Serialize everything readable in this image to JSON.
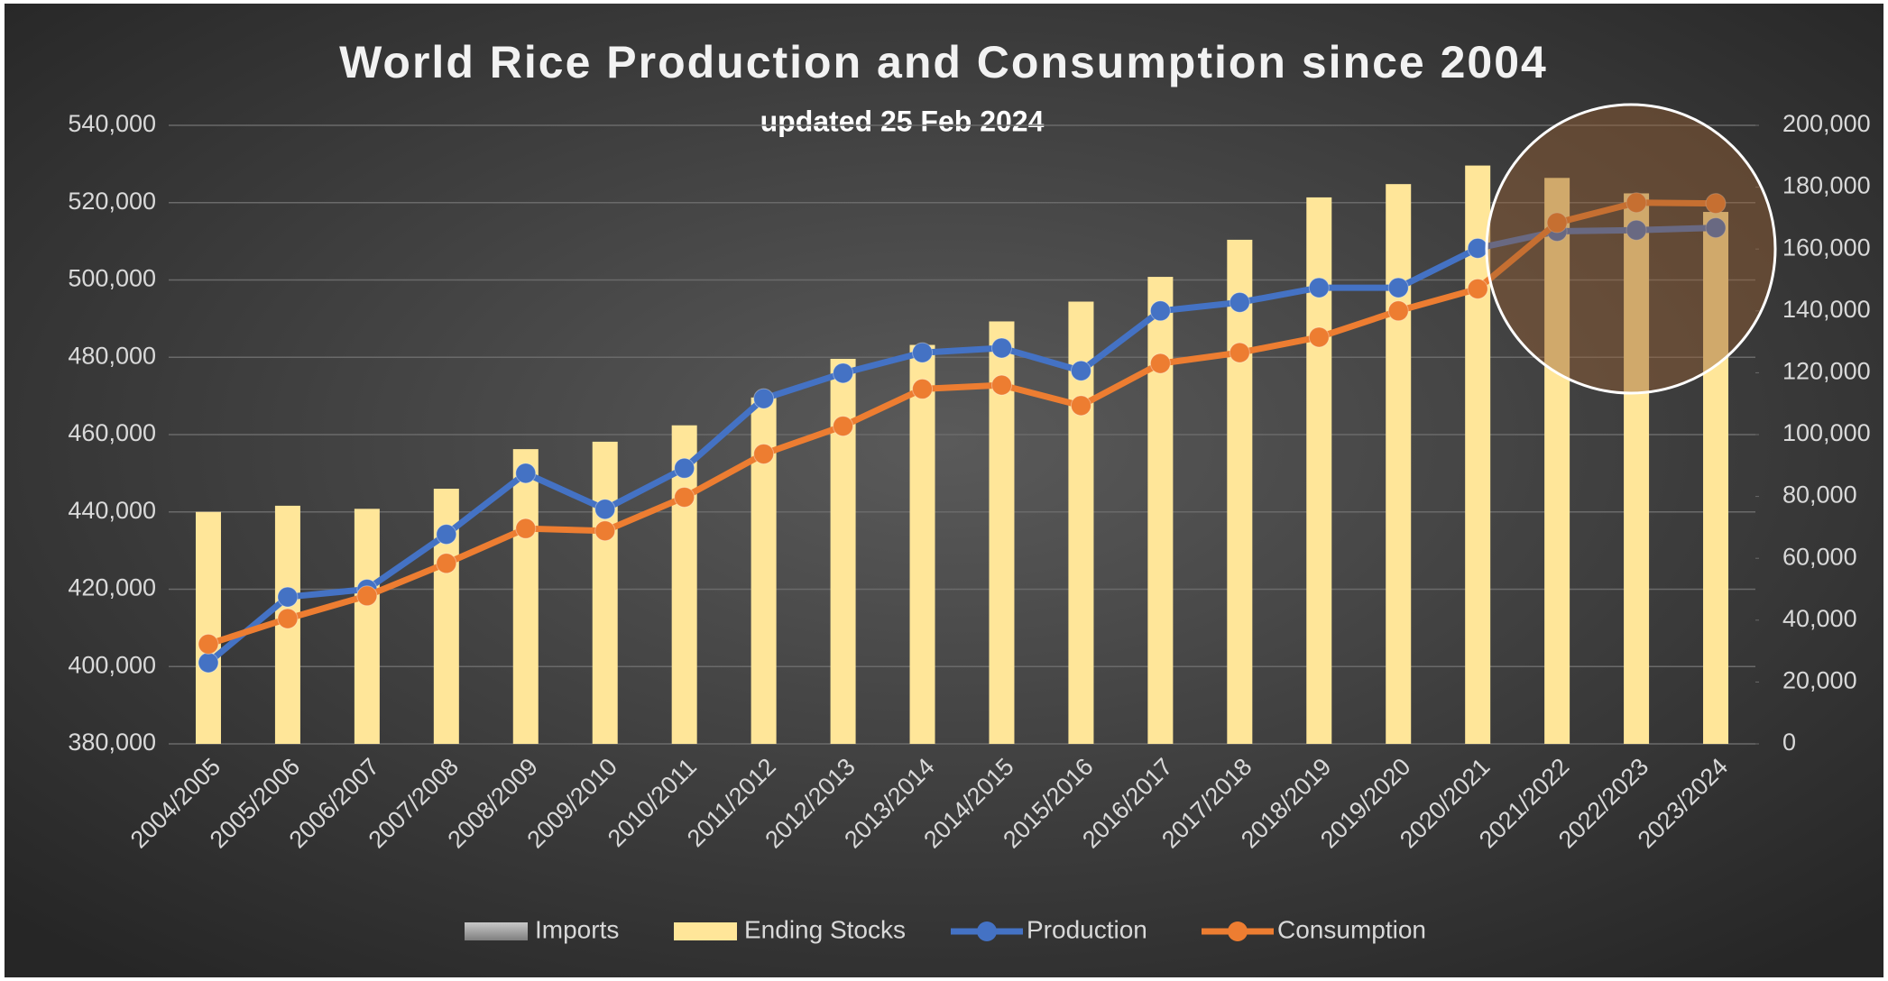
{
  "chart_data": {
    "type": "bar_line_combo",
    "title": "World Rice Production and Consumption since 2004",
    "subtitle": "updated 25 Feb 2024",
    "categories": [
      "2004/2005",
      "2005/2006",
      "2006/2007",
      "2007/2008",
      "2008/2009",
      "2009/2010",
      "2010/2011",
      "2011/2012",
      "2012/2013",
      "2013/2014",
      "2014/2015",
      "2015/2016",
      "2016/2017",
      "2017/2018",
      "2018/2019",
      "2019/2020",
      "2020/2021",
      "2021/2022",
      "2022/2023",
      "2023/2024"
    ],
    "series": [
      {
        "name": "Imports",
        "color": "#a6a6a6"
      },
      {
        "name": "Ending Stocks",
        "color": "#ffe699",
        "axis": "y2",
        "values": [
          75000,
          77000,
          76000,
          82500,
          95300,
          97700,
          103000,
          112000,
          124500,
          129000,
          136600,
          143000,
          151000,
          163000,
          176700,
          181000,
          187000,
          183000,
          178000,
          172000
        ]
      },
      {
        "name": "Production",
        "color": "#4472c4",
        "values": [
          401000,
          418000,
          420000,
          434200,
          450000,
          440700,
          451300,
          469300,
          475900,
          481200,
          482400,
          476500,
          492000,
          494200,
          498000,
          498000,
          508200,
          512600,
          512900,
          513500
        ]
      },
      {
        "name": "Consumption",
        "color": "#ed7d31",
        "values": [
          405800,
          412400,
          418300,
          426700,
          435700,
          435100,
          443800,
          455000,
          462200,
          471800,
          472800,
          467500,
          478400,
          481200,
          485200,
          492000,
          497700,
          514800,
          520000,
          519800
        ]
      }
    ],
    "ylim": [
      380000,
      540000
    ],
    "yticks": [
      {
        "value": 380000,
        "label": "380,000"
      },
      {
        "value": 400000,
        "label": "400,000"
      },
      {
        "value": 420000,
        "label": "420,000"
      },
      {
        "value": 440000,
        "label": "440,000"
      },
      {
        "value": 460000,
        "label": "460,000"
      },
      {
        "value": 480000,
        "label": "480,000"
      },
      {
        "value": 500000,
        "label": "500,000"
      },
      {
        "value": 520000,
        "label": "520,000"
      },
      {
        "value": 540000,
        "label": "540,000"
      }
    ],
    "y2lim": [
      0,
      200000
    ],
    "y2ticks": [
      0,
      {
        "value": 20000,
        "label": "20,000"
      },
      {
        "value": 40000,
        "label": "40,000"
      },
      {
        "value": 60000,
        "label": "60,000"
      },
      {
        "value": 80000,
        "label": "80,000"
      },
      {
        "value": 100000,
        "label": "100,000"
      },
      {
        "value": 120000,
        "label": "120,000"
      },
      {
        "value": 140000,
        "label": "140,000"
      },
      {
        "value": 160000,
        "label": "160,000"
      },
      {
        "value": 180000,
        "label": "180,000"
      },
      {
        "value": 200000,
        "label": "200,000"
      }
    ],
    "grid": true,
    "legend": "bottom"
  }
}
